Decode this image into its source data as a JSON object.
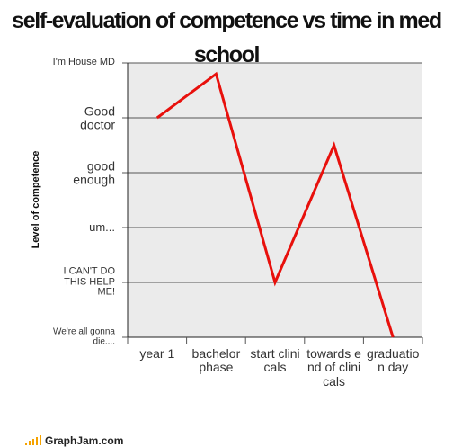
{
  "chart_data": {
    "type": "line",
    "title": "self-evaluation of competence vs time in med school",
    "ylabel": "Level of competence",
    "categories": [
      "year 1",
      "bachelor phase",
      "start clinicals",
      "towards end of clinicals",
      "graduation day"
    ],
    "series": [
      {
        "name": "competence",
        "color": "#e8100c",
        "values": [
          4.0,
          4.8,
          1.0,
          3.5,
          0
        ]
      }
    ],
    "ylim": [
      0,
      5
    ],
    "yticks": [
      {
        "value": 0,
        "label": "We're all gonna die...."
      },
      {
        "value": 1,
        "label": "I CAN'T DO THIS HELP ME!"
      },
      {
        "value": 2,
        "label": "um..."
      },
      {
        "value": 3,
        "label": "good enough"
      },
      {
        "value": 4,
        "label": "Good doctor"
      },
      {
        "value": 5,
        "label": "I'm House MD"
      }
    ],
    "grid": true
  },
  "footer": "GraphJam.com"
}
